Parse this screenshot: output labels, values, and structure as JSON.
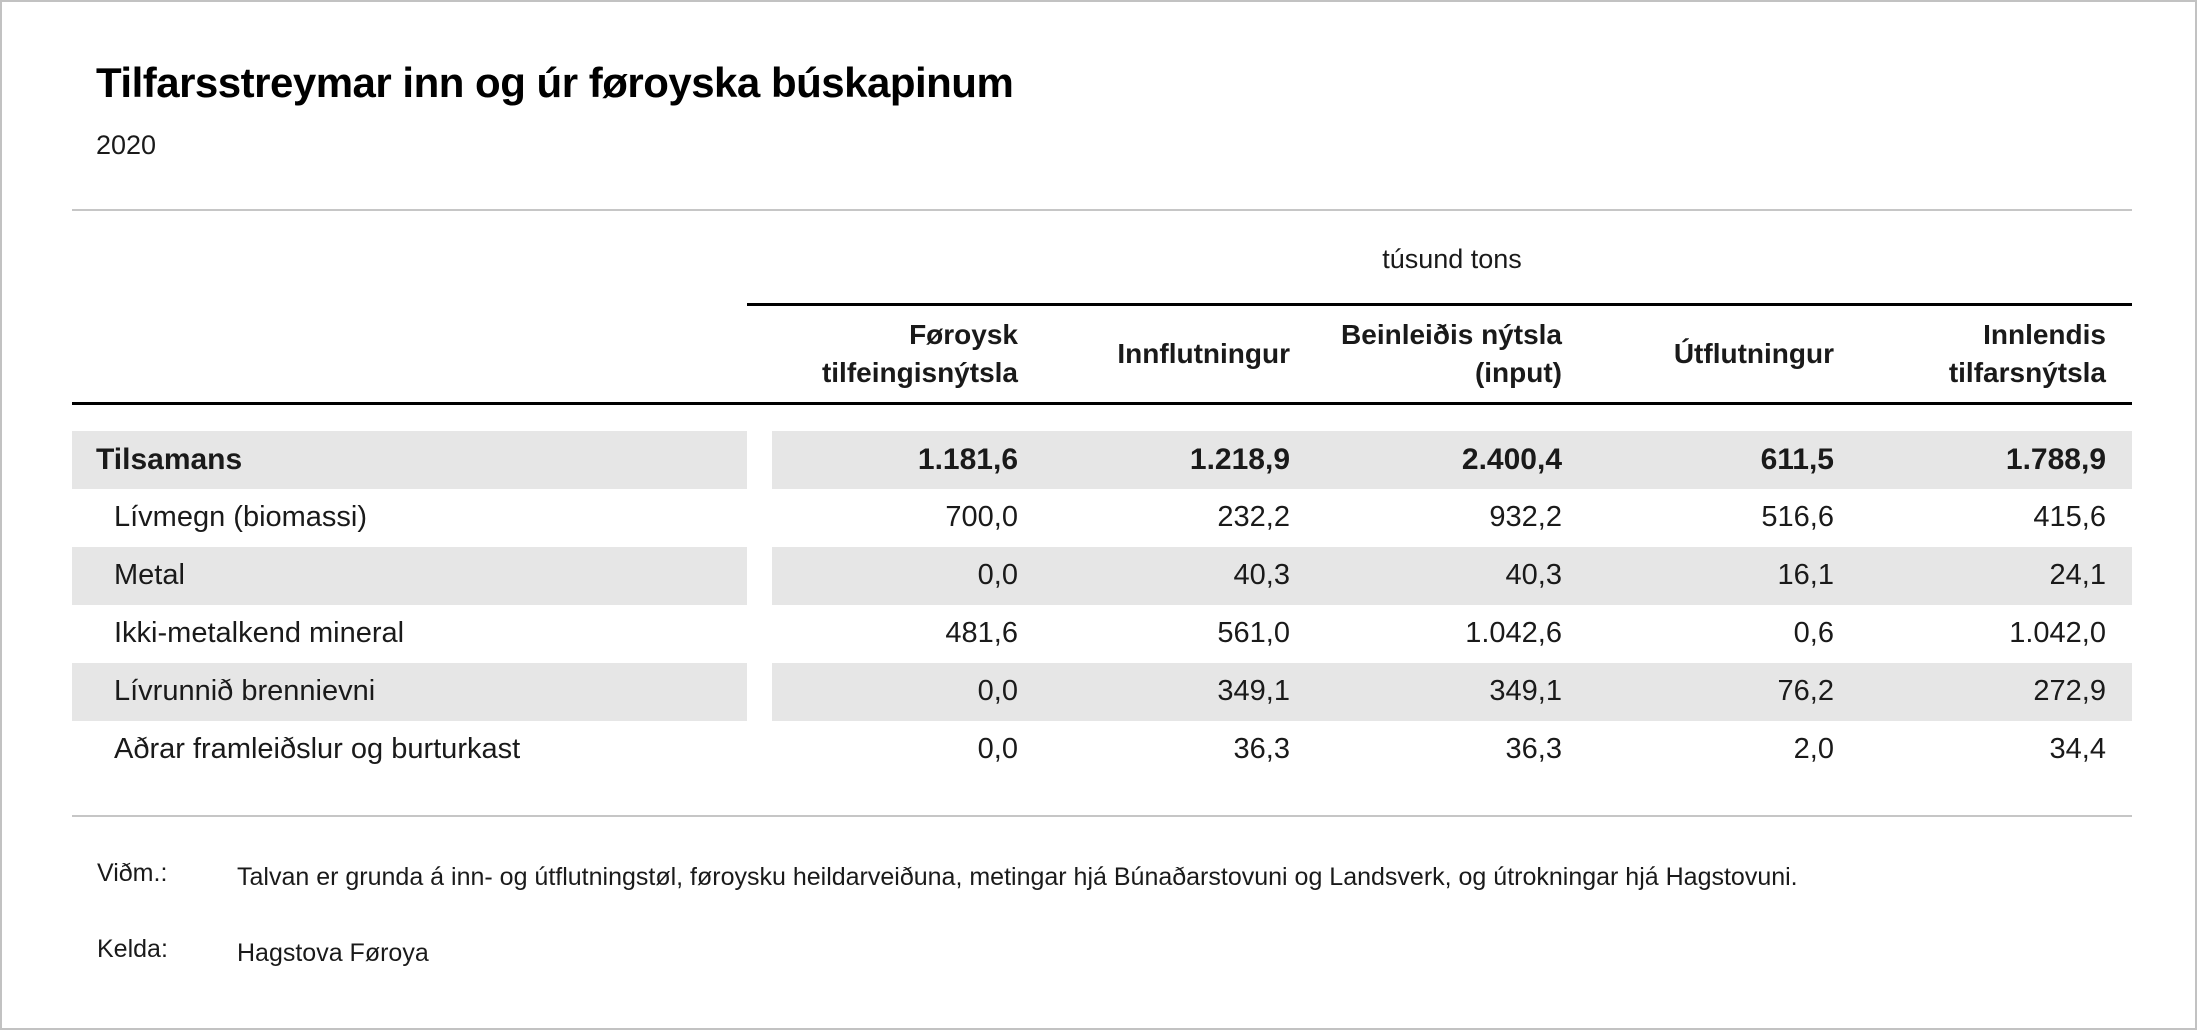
{
  "page": {
    "title": "Tilfarsstreymar inn og úr føroyska búskapinum",
    "subtitle": "2020"
  },
  "table": {
    "unit_label": "túsund tons",
    "columns": [
      "Føroysk\ntilfeingisnýtsla",
      "Innflutningur",
      "Beinleiðis nýtsla\n(input)",
      "Útflutningur",
      "Innlendis\ntilfarsnýtsla"
    ],
    "rows": [
      {
        "label": "Tilsamans",
        "values": [
          "1.181,6",
          "1.218,9",
          "2.400,4",
          "611,5",
          "1.788,9"
        ]
      },
      {
        "label": "Lívmegn (biomassi)",
        "values": [
          "700,0",
          "232,2",
          "932,2",
          "516,6",
          "415,6"
        ]
      },
      {
        "label": "Metal",
        "values": [
          "0,0",
          "40,3",
          "40,3",
          "16,1",
          "24,1"
        ]
      },
      {
        "label": "Ikki-metalkend mineral",
        "values": [
          "481,6",
          "561,0",
          "1.042,6",
          "0,6",
          "1.042,0"
        ]
      },
      {
        "label": "Lívrunnið brennievni",
        "values": [
          "0,0",
          "349,1",
          "349,1",
          "76,2",
          "272,9"
        ]
      },
      {
        "label": "Aðrar framleiðslur og burturkast",
        "values": [
          "0,0",
          "36,3",
          "36,3",
          "2,0",
          "34,4"
        ]
      }
    ]
  },
  "footer": {
    "note_label": "Viðm.:",
    "note_text": "Talvan er grunda á inn- og útflutningstøl, føroysku heildarveiðuna, metingar hjá Búnaðarstovuni og Landsverk, og útrokningar hjá Hagstovuni.",
    "source_label": "Kelda:",
    "source_text": "Hagstova Føroya"
  },
  "colors": {
    "row_stripe": "#e6e6e6",
    "rule_dark": "#000000",
    "rule_light": "#c6c6c6",
    "text": "#1a1a1a",
    "page_border": "#c2c2c2"
  },
  "chart_data": {
    "type": "table",
    "title": "Tilfarsstreymar inn og úr føroyska búskapinum",
    "subtitle": "2020",
    "unit": "túsund tons",
    "columns": [
      "Føroysk tilfeingisnýtsla",
      "Innflutningur",
      "Beinleiðis nýtsla (input)",
      "Útflutningur",
      "Innlendis tilfarsnýtsla"
    ],
    "rows": [
      {
        "category": "Tilsamans",
        "values": [
          1181.6,
          1218.9,
          2400.4,
          611.5,
          1788.9
        ]
      },
      {
        "category": "Lívmegn (biomassi)",
        "values": [
          700.0,
          232.2,
          932.2,
          516.6,
          415.6
        ]
      },
      {
        "category": "Metal",
        "values": [
          0.0,
          40.3,
          40.3,
          16.1,
          24.1
        ]
      },
      {
        "category": "Ikki-metalkend mineral",
        "values": [
          481.6,
          561.0,
          1042.6,
          0.6,
          1042.0
        ]
      },
      {
        "category": "Lívrunnið brennievni",
        "values": [
          0.0,
          349.1,
          349.1,
          76.2,
          272.9
        ]
      },
      {
        "category": "Aðrar framleiðslur og burturkast",
        "values": [
          0.0,
          36.3,
          36.3,
          2.0,
          34.4
        ]
      }
    ],
    "note": "Talvan er grunda á inn- og útflutningstøl, føroysku heildarveiðuna, metingar hjá Búnaðarstovuni og Landsverk, og útrokningar hjá Hagstovuni.",
    "source": "Hagstova Føroya"
  }
}
